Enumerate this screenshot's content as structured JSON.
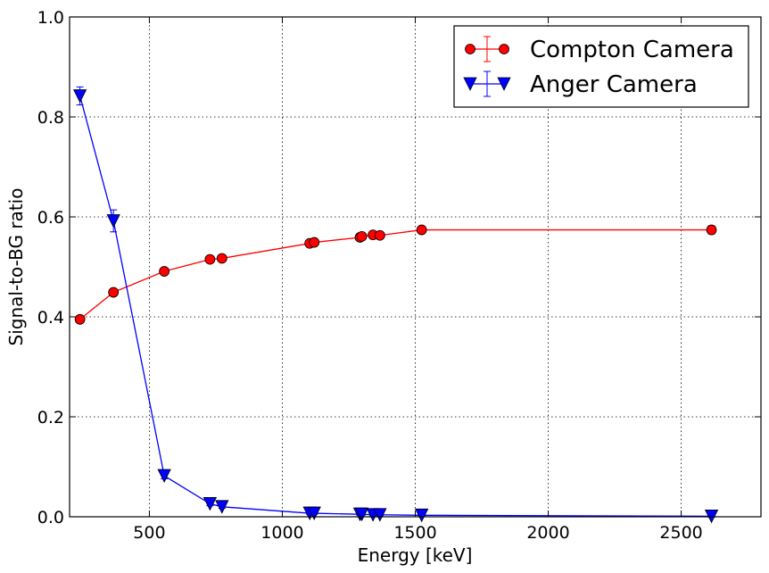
{
  "chart_data": {
    "type": "line",
    "title": "",
    "xlabel": "Energy [keV]",
    "ylabel": "Signal-to-BG ratio",
    "xlim": [
      200,
      2800
    ],
    "ylim": [
      0.0,
      1.0
    ],
    "xticks": [
      500,
      1000,
      1500,
      2000,
      2500
    ],
    "yticks": [
      0.0,
      0.2,
      0.4,
      0.6,
      0.8,
      1.0
    ],
    "xtick_labels": [
      "500",
      "1000",
      "1500",
      "2000",
      "2500"
    ],
    "ytick_labels": [
      "0.0",
      "0.2",
      "0.4",
      "0.6",
      "0.8",
      "1.0"
    ],
    "grid": true,
    "legend_position": "top-right",
    "series": [
      {
        "name": "Compton Camera",
        "color": "#ff0000",
        "marker": "circle",
        "x": [
          239,
          365,
          556,
          728,
          773,
          1103,
          1120,
          1292,
          1299,
          1341,
          1367,
          1524,
          2614
        ],
        "y": [
          0.395,
          0.449,
          0.491,
          0.515,
          0.517,
          0.547,
          0.549,
          0.559,
          0.561,
          0.564,
          0.563,
          0.574,
          0.574
        ],
        "err": [
          0.005,
          0.005,
          0.005,
          0.005,
          0.005,
          0.005,
          0.005,
          0.005,
          0.005,
          0.005,
          0.005,
          0.005,
          0.008
        ]
      },
      {
        "name": "Anger Camera",
        "color": "#0000ff",
        "marker": "triangle-down",
        "x": [
          239,
          365,
          556,
          728,
          773,
          1103,
          1120,
          1292,
          1299,
          1341,
          1367,
          1524,
          2614
        ],
        "y": [
          0.842,
          0.592,
          0.082,
          0.026,
          0.02,
          0.007,
          0.007,
          0.005,
          0.005,
          0.004,
          0.004,
          0.003,
          0.001
        ],
        "err": [
          0.018,
          0.022,
          0.006,
          0.004,
          0.003,
          0.002,
          0.002,
          0.002,
          0.002,
          0.002,
          0.002,
          0.002,
          0.002
        ]
      }
    ]
  }
}
